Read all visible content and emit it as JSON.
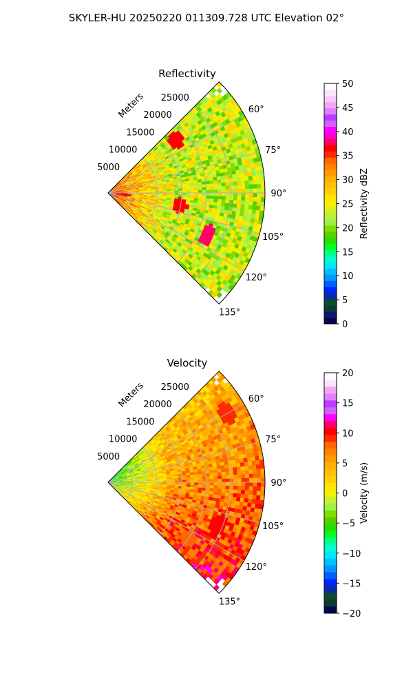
{
  "suptitle": "SKYLER-HU  20250220  011309.728 UTC Elevation 02°",
  "chart_data": [
    {
      "type": "heatmap",
      "projection": "polar-sector",
      "title": "Reflectivity",
      "theta_range_deg": [
        45,
        135
      ],
      "r_range": [
        0,
        32000
      ],
      "r_ticks": [
        5000,
        10000,
        15000,
        20000,
        25000
      ],
      "r_tick_labels": [
        "5000",
        "10000",
        "15000",
        "20000",
        "25000"
      ],
      "r_axis_label": "Meters",
      "theta_ticks_deg": [
        60,
        75,
        90,
        105,
        120,
        135
      ],
      "theta_tick_labels": [
        "60°",
        "75°",
        "90°",
        "105°",
        "120°",
        "135°"
      ],
      "grid": true,
      "colorbar": {
        "label": "Reflectivity dBZ",
        "range": [
          0,
          50
        ],
        "ticks": [
          0,
          5,
          10,
          15,
          20,
          25,
          30,
          35,
          40,
          45,
          50
        ],
        "tick_labels": [
          "0",
          "5",
          "10",
          "15",
          "20",
          "25",
          "30",
          "35",
          "40",
          "45",
          "50"
        ],
        "colors": [
          "#06064f",
          "#0a1a6e",
          "#0d3a3a",
          "#0b4d2c",
          "#0a2aa8",
          "#0026ff",
          "#0060ff",
          "#0098ff",
          "#00bfff",
          "#00e6ff",
          "#00ffcc",
          "#00ff8a",
          "#00ff22",
          "#2bdc00",
          "#55d000",
          "#7fe000",
          "#9cf04a",
          "#b8f03a",
          "#d8f020",
          "#f4f000",
          "#ffe400",
          "#ffd000",
          "#ffc000",
          "#ffb000",
          "#ff9a00",
          "#ff8200",
          "#ff6600",
          "#ff2a00",
          "#ff0000",
          "#ff0066",
          "#ff00cc",
          "#ff00ff",
          "#d060ff",
          "#bb3bff",
          "#e080ff",
          "#f0a8f4",
          "#f6c8f6",
          "#fbe3fb",
          "#ffffff"
        ]
      },
      "fields": {
        "near_value": 34,
        "far_value": 23,
        "noise": 5,
        "hotspots": [
          {
            "theta_deg": 113,
            "r": 22000,
            "value": 38
          },
          {
            "theta_deg": 100,
            "r": 15000,
            "value": 37
          },
          {
            "theta_deg": 52,
            "r": 17500,
            "value": 37
          },
          {
            "theta_deg": 96,
            "r": 3000,
            "value": 36
          }
        ]
      }
    },
    {
      "type": "heatmap",
      "projection": "polar-sector",
      "title": "Velocity",
      "theta_range_deg": [
        45,
        135
      ],
      "r_range": [
        0,
        32000
      ],
      "r_ticks": [
        5000,
        10000,
        15000,
        20000,
        25000
      ],
      "r_tick_labels": [
        "5000",
        "10000",
        "15000",
        "20000",
        "25000"
      ],
      "r_axis_label": "Meters",
      "theta_ticks_deg": [
        60,
        75,
        90,
        105,
        120,
        135
      ],
      "theta_tick_labels": [
        "60°",
        "75°",
        "90°",
        "105°",
        "120°",
        "135°"
      ],
      "grid": true,
      "colorbar": {
        "label": "Velocity (m/s)",
        "range": [
          -20,
          20
        ],
        "ticks": [
          -20,
          -15,
          -10,
          -5,
          0,
          5,
          10,
          15,
          20
        ],
        "tick_labels": [
          "−20",
          "−15",
          "−10",
          "−5",
          "0",
          "5",
          "10",
          "15",
          "20"
        ],
        "colors": [
          "#06064f",
          "#0b3a3a",
          "#0d4d2c",
          "#0a2aa8",
          "#0026ff",
          "#0060ff",
          "#0098ff",
          "#00bfff",
          "#00e6ff",
          "#00ffcc",
          "#00ff8a",
          "#00ff22",
          "#2bdc00",
          "#55d000",
          "#7fe000",
          "#9cf04a",
          "#c8f030",
          "#f4f000",
          "#ffe400",
          "#ffd000",
          "#ffc000",
          "#ffb000",
          "#ff9a00",
          "#ff8200",
          "#ff6600",
          "#ff2a00",
          "#ff0000",
          "#ff0066",
          "#ff00ff",
          "#d060ff",
          "#bb3bff",
          "#e080ff",
          "#f0a8f4",
          "#fbe3fb",
          "#ffffff"
        ]
      },
      "fields": {
        "near_value": -5,
        "far_value": 5,
        "noise": 3,
        "hotspots": [
          {
            "theta_deg": 125,
            "r": 20000,
            "value": 8
          },
          {
            "theta_deg": 60,
            "r": 28000,
            "value": 9
          },
          {
            "theta_deg": 112,
            "r": 24000,
            "value": 10
          }
        ]
      }
    }
  ]
}
